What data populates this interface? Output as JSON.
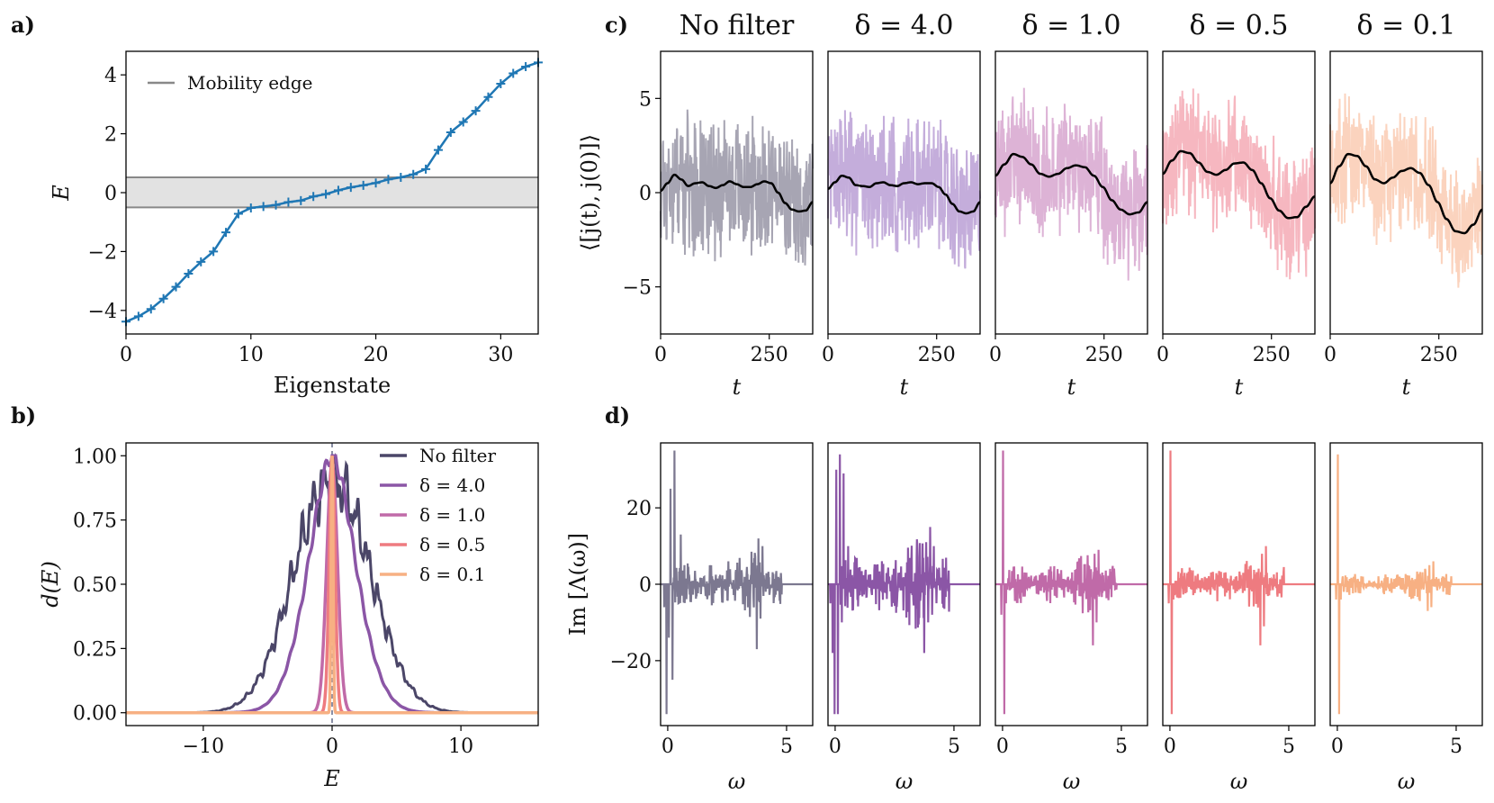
{
  "panel_labels": {
    "a": "a)",
    "b": "b)",
    "c": "c)",
    "d": "d)"
  },
  "chart_data": [
    {
      "id": "a",
      "type": "line",
      "xlabel": "Eigenstate",
      "ylabel": "E",
      "xlim": [
        0,
        33
      ],
      "ylim": [
        -4.8,
        4.8
      ],
      "xticks": [
        0,
        10,
        20,
        30
      ],
      "yticks": [
        -4,
        -2,
        0,
        2,
        4
      ],
      "legend": "Mobility edge",
      "band": [
        -0.5,
        0.52
      ],
      "color": "#1f77b4",
      "x": [
        0,
        1,
        2,
        3,
        4,
        5,
        6,
        7,
        8,
        9,
        10,
        11,
        12,
        13,
        14,
        15,
        16,
        17,
        18,
        19,
        20,
        21,
        22,
        23,
        24,
        25,
        26,
        27,
        28,
        29,
        30,
        31,
        32,
        33
      ],
      "values": [
        -4.38,
        -4.2,
        -3.95,
        -3.6,
        -3.2,
        -2.75,
        -2.35,
        -2.0,
        -1.35,
        -0.72,
        -0.52,
        -0.47,
        -0.42,
        -0.32,
        -0.27,
        -0.13,
        -0.05,
        0.08,
        0.18,
        0.25,
        0.33,
        0.45,
        0.52,
        0.62,
        0.8,
        1.45,
        2.05,
        2.4,
        2.78,
        3.25,
        3.7,
        4.05,
        4.28,
        4.42
      ]
    },
    {
      "id": "b",
      "type": "line",
      "xlabel": "E",
      "ylabel": "d(E)",
      "xlim": [
        -16,
        16
      ],
      "ylim": [
        -0.05,
        1.05
      ],
      "xticks": [
        -10,
        0,
        10
      ],
      "yticks": [
        "0.00",
        "0.25",
        "0.50",
        "0.75",
        "1.00"
      ],
      "series": [
        {
          "name": "No filter",
          "width": 4.0,
          "color": "#4b4668"
        },
        {
          "name": "δ = 4.0",
          "width": 2.0,
          "color": "#8b56a6"
        },
        {
          "name": "δ = 1.0",
          "width": 0.5,
          "color": "#c06aa8"
        },
        {
          "name": "δ = 0.5",
          "width": 0.25,
          "color": "#ee7b80"
        },
        {
          "name": "δ = 0.1",
          "width": 0.05,
          "color": "#f7b083"
        }
      ]
    },
    {
      "id": "c",
      "type": "line",
      "xlabel": "t",
      "ylabel": "⟨[j(t), j(0)]⟩",
      "xlim": [
        0,
        350
      ],
      "ylim": [
        -7.5,
        7.5
      ],
      "xticks": [
        0,
        250
      ],
      "yticks": [
        -5,
        0,
        5
      ],
      "panels": [
        {
          "title": "No filter",
          "color": "#a7a5b3",
          "smooth": [
            0.1,
            0.5,
            0.95,
            0.7,
            0.35,
            0.5,
            0.55,
            0.35,
            0.25,
            0.4,
            0.6,
            0.45,
            0.3,
            0.3,
            0.45,
            0.6,
            0.5,
            0.0,
            -0.55,
            -0.9,
            -1.0,
            -0.95,
            -0.5
          ]
        },
        {
          "title": "δ = 4.0",
          "color": "#c4addb",
          "smooth": [
            0.2,
            0.55,
            0.9,
            0.8,
            0.4,
            0.35,
            0.3,
            0.5,
            0.55,
            0.4,
            0.35,
            0.5,
            0.55,
            0.45,
            0.5,
            0.5,
            0.3,
            -0.1,
            -0.6,
            -1.0,
            -1.1,
            -1.0,
            -0.5
          ]
        },
        {
          "title": "δ = 1.0",
          "color": "#ddb3d6",
          "smooth": [
            0.9,
            1.5,
            2.05,
            1.9,
            1.5,
            1.0,
            0.85,
            1.0,
            1.3,
            1.45,
            1.35,
            0.9,
            0.3,
            -0.4,
            -0.9,
            -1.15,
            -1.05,
            -0.5
          ]
        },
        {
          "title": "δ = 0.5",
          "color": "#f6b7c0",
          "smooth": [
            1.0,
            1.7,
            2.2,
            2.1,
            1.6,
            1.1,
            0.95,
            1.2,
            1.55,
            1.6,
            1.2,
            0.5,
            -0.3,
            -0.95,
            -1.35,
            -1.3,
            -0.75,
            -0.2
          ]
        },
        {
          "title": "δ = 0.1",
          "color": "#fbd3be",
          "smooth": [
            0.5,
            1.4,
            2.05,
            1.95,
            1.4,
            0.7,
            0.5,
            0.8,
            1.15,
            1.3,
            1.05,
            0.4,
            -0.5,
            -1.4,
            -2.05,
            -2.15,
            -1.7,
            -0.9
          ]
        }
      ]
    },
    {
      "id": "d",
      "type": "line",
      "xlabel": "ω",
      "ylabel": "Im [Λ(ω)]",
      "xlim": [
        -0.3,
        6.1
      ],
      "ylim": [
        -37,
        37
      ],
      "xticks": [
        0,
        5
      ],
      "yticks": [
        -20,
        0,
        20
      ],
      "panels": [
        {
          "color": "#7c7890",
          "low": [
            [
              -0.15,
              -6
            ],
            [
              -0.05,
              -34
            ],
            [
              0.05,
              -14
            ],
            [
              0.12,
              25
            ],
            [
              0.2,
              -25
            ],
            [
              0.28,
              35
            ],
            [
              0.35,
              4
            ],
            [
              0.45,
              -5
            ],
            [
              0.55,
              13
            ],
            [
              0.62,
              -3
            ],
            [
              0.7,
              5
            ]
          ],
          "high": [
            [
              3.75,
              -17
            ],
            [
              3.82,
              12
            ],
            [
              3.9,
              -9
            ],
            [
              3.98,
              10
            ]
          ]
        },
        {
          "color": "#8b56a6",
          "low": [
            [
              -0.2,
              -5
            ],
            [
              -0.1,
              -18
            ],
            [
              -0.02,
              -34
            ],
            [
              0.05,
              30
            ],
            [
              0.12,
              -34
            ],
            [
              0.2,
              34
            ],
            [
              0.28,
              -10
            ],
            [
              0.36,
              29
            ],
            [
              0.45,
              -3
            ],
            [
              0.55,
              10
            ]
          ],
          "high": [
            [
              3.75,
              -18
            ],
            [
              3.83,
              11
            ],
            [
              3.92,
              -10
            ],
            [
              4.0,
              15
            ],
            [
              4.08,
              -8
            ],
            [
              4.15,
              10
            ]
          ]
        },
        {
          "color": "#c06aa8",
          "low": [
            [
              -0.05,
              -8
            ],
            [
              0.02,
              35
            ],
            [
              0.08,
              -34
            ],
            [
              0.15,
              -5
            ]
          ],
          "high": [
            [
              3.8,
              -16
            ],
            [
              3.88,
              8
            ],
            [
              3.96,
              -10
            ],
            [
              4.04,
              9
            ]
          ]
        },
        {
          "color": "#ee7b80",
          "low": [
            [
              -0.05,
              -5
            ],
            [
              0.02,
              35
            ],
            [
              0.08,
              -34
            ],
            [
              0.15,
              -4
            ]
          ],
          "high": [
            [
              3.8,
              -16
            ],
            [
              3.88,
              8
            ],
            [
              3.96,
              -11
            ],
            [
              4.04,
              10
            ]
          ]
        },
        {
          "color": "#f7b083",
          "low": [
            [
              -0.05,
              -4
            ],
            [
              0.02,
              34
            ],
            [
              0.08,
              -34
            ],
            [
              0.15,
              -4
            ]
          ],
          "high": [
            [
              3.8,
              -7
            ],
            [
              3.88,
              5
            ],
            [
              3.96,
              -6
            ],
            [
              4.04,
              6
            ]
          ]
        }
      ]
    }
  ]
}
